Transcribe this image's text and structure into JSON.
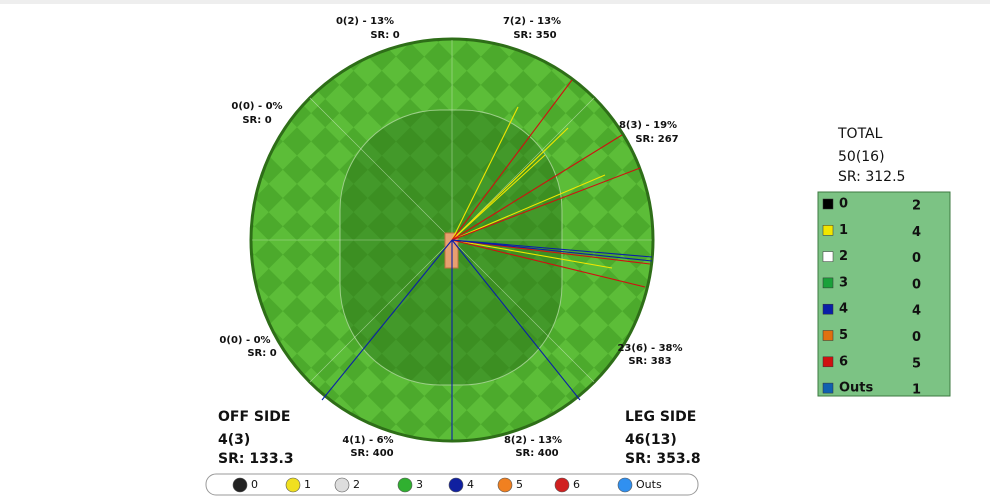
{
  "zones": [
    {
      "runs": "0(2) - 13%",
      "sr": "SR: 0"
    },
    {
      "runs": "7(2) - 13%",
      "sr": "SR: 350"
    },
    {
      "runs": "8(3) - 19%",
      "sr": "SR: 267"
    },
    {
      "runs": "23(6) - 38%",
      "sr": "SR: 383"
    },
    {
      "runs": "8(2) - 13%",
      "sr": "SR: 400"
    },
    {
      "runs": "4(1) - 6%",
      "sr": "SR: 400"
    },
    {
      "runs": "0(0) - 0%",
      "sr": "SR: 0"
    },
    {
      "runs": "0(0) - 0%",
      "sr": "SR: 0"
    }
  ],
  "off_side": {
    "title": "OFF SIDE",
    "runs": "4(3)",
    "sr": "SR: 133.3"
  },
  "leg_side": {
    "title": "LEG SIDE",
    "runs": "46(13)",
    "sr": "SR: 353.8"
  },
  "total": {
    "title": "TOTAL",
    "runs": "50(16)",
    "sr": "SR: 312.5"
  },
  "breakdown": [
    {
      "label": "0",
      "count": "2",
      "color": "#000000"
    },
    {
      "label": "1",
      "count": "4",
      "color": "#f2e600"
    },
    {
      "label": "2",
      "count": "0",
      "color": "#ffffff"
    },
    {
      "label": "3",
      "count": "0",
      "color": "#1aa13a"
    },
    {
      "label": "4",
      "count": "4",
      "color": "#0a1fa8"
    },
    {
      "label": "5",
      "count": "0",
      "color": "#e07010"
    },
    {
      "label": "6",
      "count": "5",
      "color": "#d01010"
    },
    {
      "label": "Outs",
      "count": "1",
      "color": "#1060b0"
    }
  ],
  "legend": [
    {
      "label": "0",
      "color": "#222222"
    },
    {
      "label": "1",
      "color": "#f0e020"
    },
    {
      "label": "2",
      "color": "#dddddd"
    },
    {
      "label": "3",
      "color": "#30b030"
    },
    {
      "label": "4",
      "color": "#1020a0"
    },
    {
      "label": "5",
      "color": "#f08020"
    },
    {
      "label": "6",
      "color": "#d02020"
    },
    {
      "label": "Outs",
      "color": "#3090f0"
    }
  ]
}
